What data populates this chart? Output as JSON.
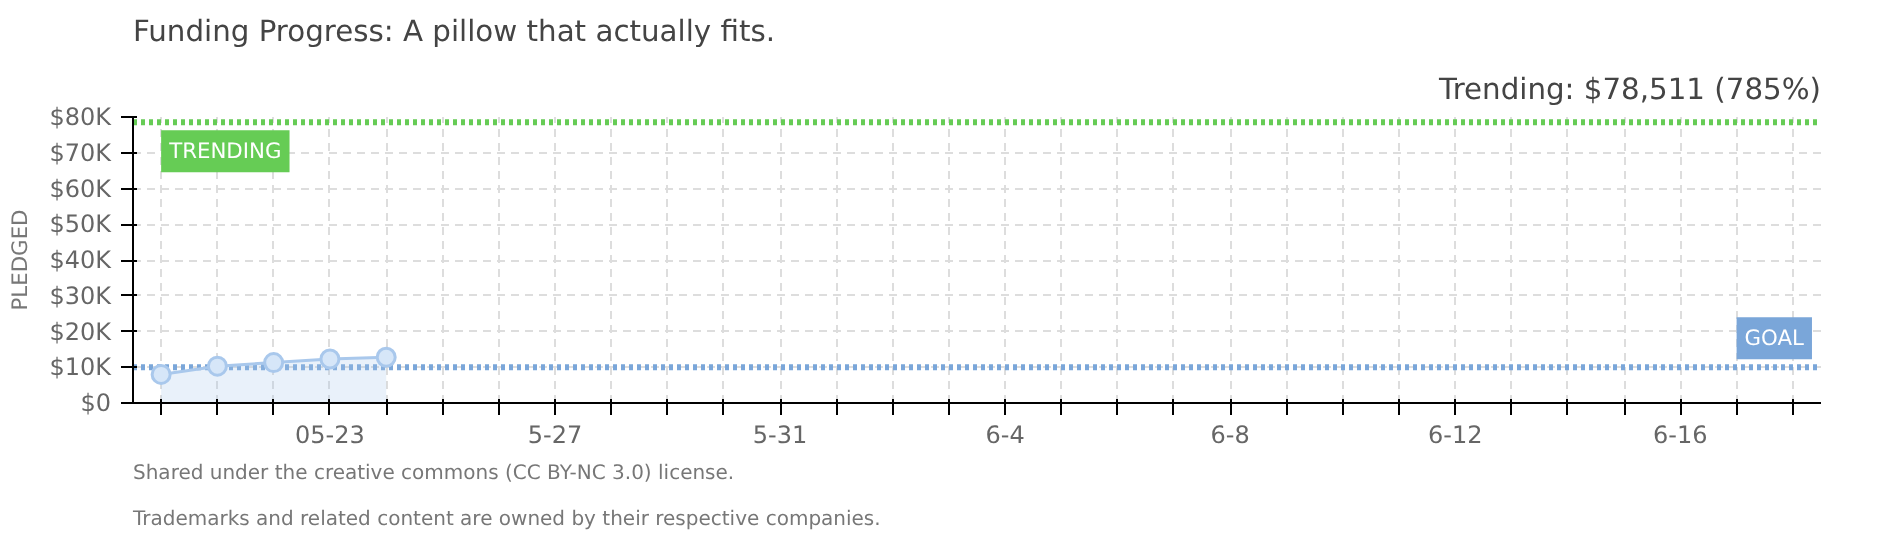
{
  "chart_data": {
    "type": "area",
    "title": "Funding Progress: A pillow that actually fits.",
    "subtitle": "Trending: $78,511 (785%)",
    "ylabel": "PLEDGED",
    "categories": [
      null,
      null,
      null,
      "05-23",
      null,
      null,
      null,
      "5-27",
      null,
      null,
      null,
      "5-31",
      null,
      null,
      null,
      "6-4",
      null,
      null,
      null,
      "6-8",
      null,
      null,
      null,
      "6-12",
      null,
      null,
      null,
      "6-16",
      null,
      null
    ],
    "series": [
      {
        "color": "#a9c8ec",
        "values": [
          8000,
          10300,
          11300,
          12300,
          12800,
          null,
          null,
          null,
          null,
          null,
          null,
          null,
          null,
          null,
          null,
          null,
          null,
          null,
          null,
          null,
          null,
          null,
          null,
          null,
          null,
          null,
          null,
          null,
          null,
          null
        ]
      }
    ],
    "ylim": [
      0,
      80000
    ],
    "yticks": [
      {
        "value": 0,
        "label": "$0"
      },
      {
        "value": 10000,
        "label": "$10K"
      },
      {
        "value": 20000,
        "label": "$20K"
      },
      {
        "value": 30000,
        "label": "$30K"
      },
      {
        "value": 40000,
        "label": "$40K"
      },
      {
        "value": 50000,
        "label": "$50K"
      },
      {
        "value": 60000,
        "label": "$60K"
      },
      {
        "value": 70000,
        "label": "$70K"
      },
      {
        "value": 80000,
        "label": "$80K"
      }
    ],
    "ref_lines": [
      {
        "axis": "y",
        "value": 78511,
        "label": "TRENDING",
        "color": "#66cc55",
        "line_style": "dotted"
      },
      {
        "axis": "y",
        "value": 10000,
        "label": "GOAL",
        "color": "#7aa6d9",
        "line_style": "dotted"
      }
    ],
    "grid": true,
    "marker": "circle",
    "annotations": [
      "Trademarks and related content are owned by their respective companies.",
      "Shared under the creative commons (CC BY-NC 3.0) license."
    ]
  }
}
